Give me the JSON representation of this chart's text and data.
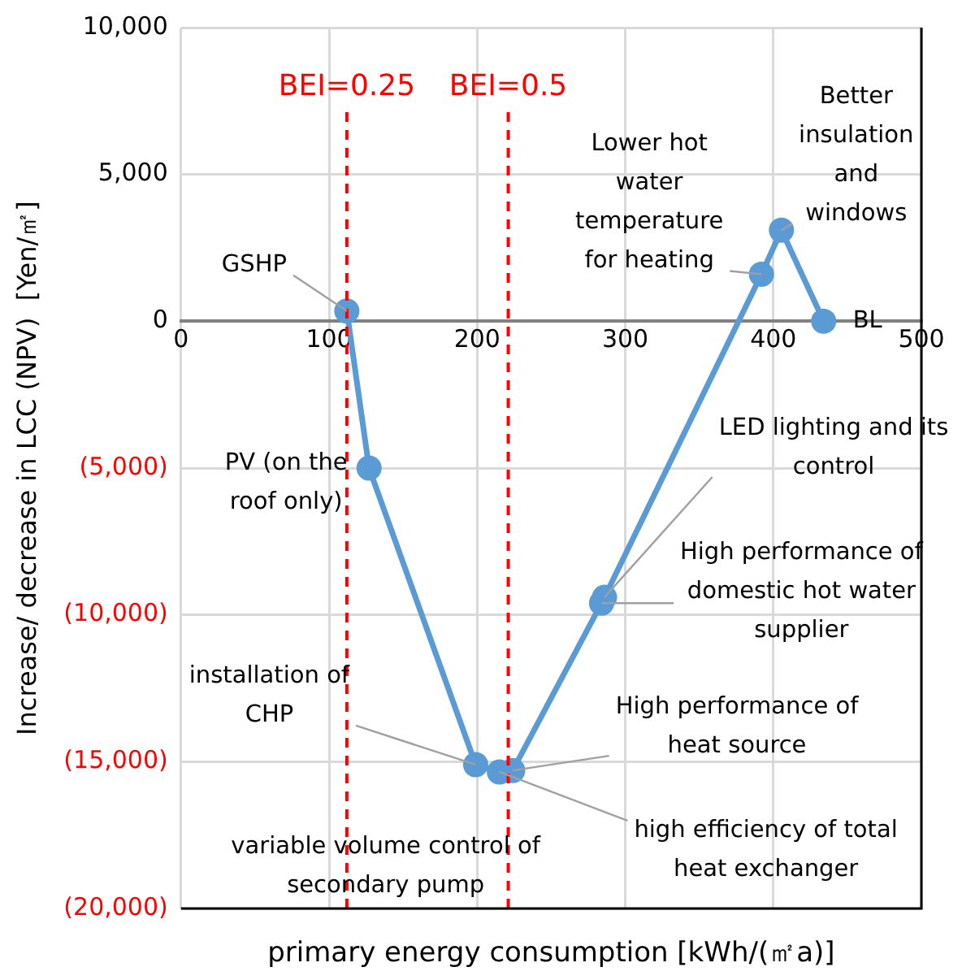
{
  "chart_data": {
    "type": "line",
    "xlabel": "primary energy consumption [kWh/(㎡a)]",
    "ylabel": "Increase/ decrease in LCC (NPV)  [Yen/㎡]",
    "x": [
      434,
      405.5,
      392,
      286,
      284,
      224,
      215,
      199,
      127,
      112
    ],
    "series": [
      {
        "color": "#5b9bd5",
        "values": [
          0,
          3100,
          1600,
          -9400,
          -9600,
          -15300,
          -15350,
          -15100,
          -5000,
          350
        ]
      }
    ],
    "xlim": [
      0,
      500
    ],
    "xticks": [
      0,
      100,
      200,
      300,
      400,
      500
    ],
    "ylim": [
      -20000,
      10000
    ],
    "yticks": [
      {
        "value": -20000,
        "label": "(20,000)"
      },
      {
        "value": -15000,
        "label": "(15,000)"
      },
      {
        "value": -10000,
        "label": "(10,000)"
      },
      {
        "value": -5000,
        "label": "(5,000)"
      },
      {
        "value": 0,
        "label": "0"
      },
      {
        "value": 5000,
        "label": "5,000"
      },
      {
        "value": 10000,
        "label": "10,000"
      }
    ],
    "ref_lines": [
      {
        "axis": "x",
        "value": 112,
        "color": "#ff0000",
        "line_style": "dashed"
      },
      {
        "axis": "x",
        "value": 221,
        "color": "#ff0000",
        "line_style": "dashed"
      }
    ],
    "annotations": [
      {
        "text": "BL",
        "x": 434,
        "y": 0
      },
      {
        "text": "Better insulation and windows",
        "x": 405.5,
        "y": 3100
      },
      {
        "text": "Lower hot water temperature for heating",
        "x": 392,
        "y": 1600
      },
      {
        "text": "LED lighting and its control",
        "x": 286,
        "y": -9400
      },
      {
        "text": "High performance of domestic hot water supplier",
        "x": 284,
        "y": -9600
      },
      {
        "text": "High performance of heat source",
        "x": 224,
        "y": -15300
      },
      {
        "text": "high efficiency of total heat exchanger",
        "x": 215,
        "y": -15350
      },
      {
        "text": "variable volume control of secondary pump",
        "x": 215,
        "y": -15350
      },
      {
        "text": "installation of CHP",
        "x": 199,
        "y": -15100
      },
      {
        "text": "PV (on the roof only)",
        "x": 127,
        "y": -5000
      },
      {
        "text": "GSHP",
        "x": 112,
        "y": 350
      },
      "BEI=0.25",
      "BEI=0.5"
    ],
    "grid": true,
    "marker": "circle",
    "line_style": "solid",
    "legend": false
  }
}
